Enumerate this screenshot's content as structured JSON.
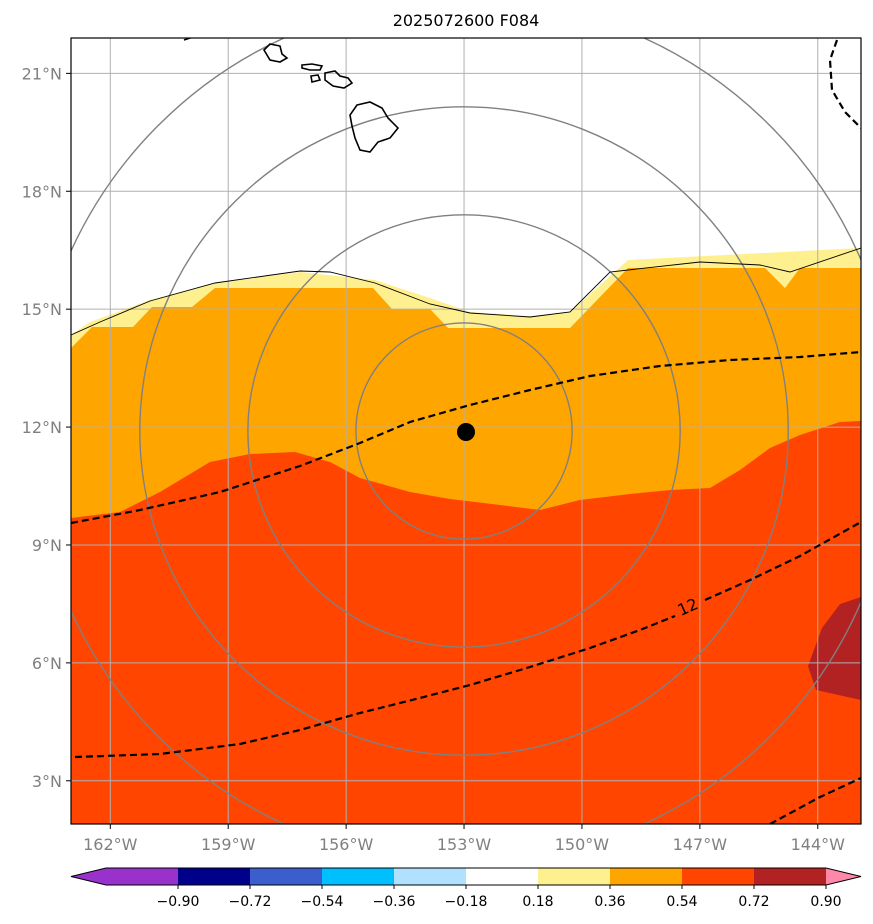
{
  "title": "2025072600 F084",
  "map": {
    "lon_range": [
      -163,
      -142.9
    ],
    "lat_range": [
      1.9,
      21.9
    ],
    "lon_ticks": [
      {
        "value": -162,
        "label": "162°W"
      },
      {
        "value": -159,
        "label": "159°W"
      },
      {
        "value": -156,
        "label": "156°W"
      },
      {
        "value": -153,
        "label": "153°W"
      },
      {
        "value": -150,
        "label": "150°W"
      },
      {
        "value": -147,
        "label": "147°W"
      },
      {
        "value": -144,
        "label": "144°W"
      }
    ],
    "lat_ticks": [
      {
        "value": 3,
        "label": "3°N"
      },
      {
        "value": 6,
        "label": "6°N"
      },
      {
        "value": 9,
        "label": "9°N"
      },
      {
        "value": 12,
        "label": "12°N"
      },
      {
        "value": 15,
        "label": "15°N"
      },
      {
        "value": 18,
        "label": "18°N"
      },
      {
        "value": 21,
        "label": "21°N"
      }
    ],
    "grid": true,
    "grid_color": "#b0b0b0",
    "center_marker": {
      "lon": -153.0,
      "lat": 11.9
    },
    "range_ring_radii_deg": [
      2.75,
      5.5,
      8.25,
      11.0
    ],
    "range_ring_color": "#808080",
    "contour_label": "12"
  },
  "colorbar": {
    "levels": [
      -0.9,
      -0.72,
      -0.54,
      -0.36,
      -0.18,
      0.18,
      0.36,
      0.54,
      0.72,
      0.9
    ],
    "tick_labels": [
      "−0.90",
      "−0.72",
      "−0.54",
      "−0.36",
      "−0.18",
      "0.18",
      "0.36",
      "0.54",
      "0.72",
      "0.90"
    ],
    "under_color": "#9932cc",
    "over_color": "#ff88aa",
    "colors": [
      "#00008b",
      "#3a5fcd",
      "#00bfff",
      "#b0e2ff",
      "#ffffff",
      "#fff08f",
      "#ffa500",
      "#ff4500",
      "#b22222"
    ]
  }
}
